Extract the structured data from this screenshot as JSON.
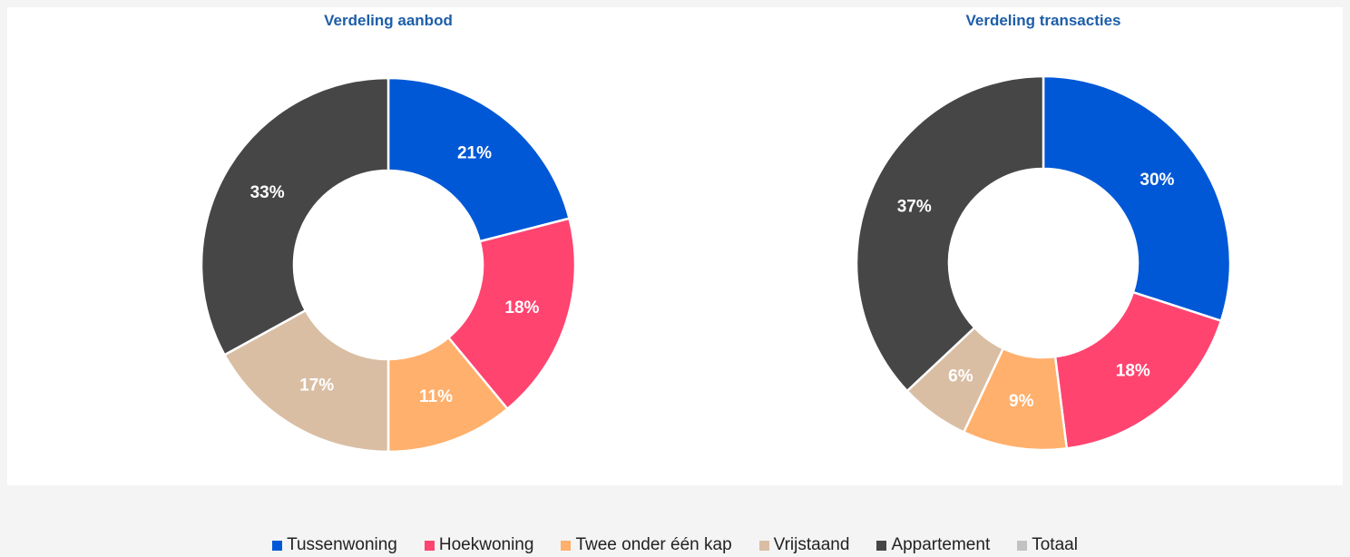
{
  "chart_data": [
    {
      "type": "pie",
      "title": "Verdeling aanbod",
      "values": [
        21,
        18,
        11,
        17,
        33
      ],
      "value_labels": [
        "21%",
        "18%",
        "11%",
        "17%",
        "33%"
      ]
    },
    {
      "type": "pie",
      "title": "Verdeling transacties",
      "values": [
        30,
        18,
        9,
        6,
        37
      ],
      "value_labels": [
        "30%",
        "18%",
        "9%",
        "6%",
        "37%"
      ]
    }
  ],
  "legend": {
    "items": [
      {
        "name": "Tussenwoning",
        "color": "#0058d6"
      },
      {
        "name": "Hoekwoning",
        "color": "#ff4470"
      },
      {
        "name": "Twee onder één kap",
        "color": "#ffb06c"
      },
      {
        "name": "Vrijstaand",
        "color": "#d9bea4"
      },
      {
        "name": "Appartement",
        "color": "#464646"
      },
      {
        "name": "Totaal",
        "color": "#c2c2c2"
      }
    ]
  }
}
